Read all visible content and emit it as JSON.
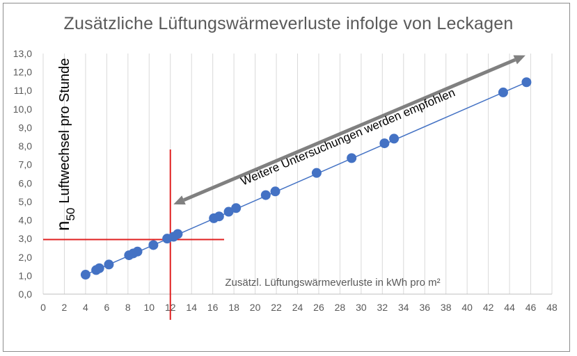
{
  "chart_data": {
    "type": "scatter",
    "title": "Zusätzliche Lüftungswärmeverluste infolge von Leckagen",
    "ylabel_symbol": "n",
    "ylabel_subscript": "50",
    "ylabel": "Luftwechsel pro Stunde",
    "xlabel": "Zusätzl. Lüftungswärmeverluste in kWh pro m²",
    "xlim": [
      0,
      48
    ],
    "ylim": [
      0,
      13
    ],
    "x_ticks": [
      "0",
      "2",
      "4",
      "6",
      "8",
      "10",
      "12",
      "14",
      "16",
      "18",
      "20",
      "22",
      "24",
      "26",
      "28",
      "30",
      "32",
      "34",
      "36",
      "38",
      "40",
      "42",
      "44",
      "46",
      "48"
    ],
    "y_ticks": [
      "0,0",
      "1,0",
      "2,0",
      "3,0",
      "4,0",
      "5,0",
      "6,0",
      "7,0",
      "8,0",
      "9,0",
      "10,0",
      "11,0",
      "12,0",
      "13,0"
    ],
    "grid": "vertical",
    "points": [
      {
        "x": 4.0,
        "y": 1.05
      },
      {
        "x": 5.0,
        "y": 1.3
      },
      {
        "x": 5.3,
        "y": 1.4
      },
      {
        "x": 6.2,
        "y": 1.6
      },
      {
        "x": 8.1,
        "y": 2.1
      },
      {
        "x": 8.5,
        "y": 2.2
      },
      {
        "x": 8.9,
        "y": 2.3
      },
      {
        "x": 10.4,
        "y": 2.65
      },
      {
        "x": 11.7,
        "y": 3.0
      },
      {
        "x": 12.3,
        "y": 3.1
      },
      {
        "x": 12.7,
        "y": 3.25
      },
      {
        "x": 16.1,
        "y": 4.1
      },
      {
        "x": 16.6,
        "y": 4.2
      },
      {
        "x": 17.5,
        "y": 4.45
      },
      {
        "x": 18.2,
        "y": 4.65
      },
      {
        "x": 21.0,
        "y": 5.35
      },
      {
        "x": 21.9,
        "y": 5.55
      },
      {
        "x": 25.8,
        "y": 6.55
      },
      {
        "x": 29.1,
        "y": 7.35
      },
      {
        "x": 32.2,
        "y": 8.15
      },
      {
        "x": 33.1,
        "y": 8.4
      },
      {
        "x": 43.4,
        "y": 10.9
      },
      {
        "x": 45.6,
        "y": 11.45
      }
    ],
    "trendline": {
      "x": [
        4.0,
        45.6
      ],
      "y": [
        1.05,
        11.45
      ]
    },
    "reference_lines": {
      "x": 12,
      "y": 2.95
    },
    "annotation": {
      "text": "Weitere Untersuchungen werden empfohlen",
      "arrow_from": {
        "x": 12.3,
        "y": 4.85
      },
      "arrow_to": {
        "x": 45.5,
        "y": 12.9
      }
    },
    "colors": {
      "points": "#4472c4",
      "trendline": "#4472c4",
      "reference": "#e02020",
      "arrow": "#808080",
      "grid": "#d9d9d9",
      "text": "#595959"
    }
  }
}
